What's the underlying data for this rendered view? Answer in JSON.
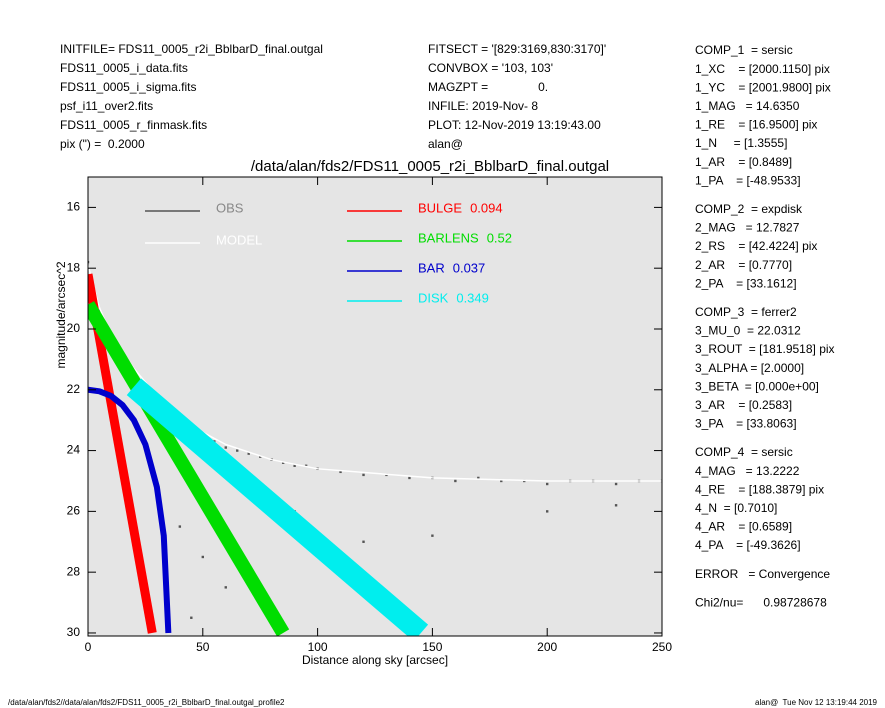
{
  "header": {
    "left": [
      "INITFILE= FDS11_0005_r2i_BblbarD_final.outgal",
      "FDS11_0005_i_data.fits",
      "FDS11_0005_i_sigma.fits",
      "psf_i11_over2.fits",
      "FDS11_0005_r_finmask.fits",
      "pix (\") =  0.2000"
    ],
    "middle": [
      "FITSECT = '[829:3169,830:3170]'",
      "CONVBOX = '103, 103'",
      "MAGZPT =               0.",
      "INFILE: 2019-Nov- 8",
      "PLOT: 12-Nov-2019 13:19:43.00",
      "alan@"
    ]
  },
  "parameters": [
    [
      "COMP_1  = sersic",
      "1_XC    = [2000.1150] pix",
      "1_YC    = [2001.9800] pix",
      "1_MAG   = 14.6350",
      "1_RE    = [16.9500] pix",
      "1_N     = [1.3555]",
      "1_AR    = [0.8489]",
      "1_PA    = [-48.9533]"
    ],
    [
      "COMP_2  = expdisk",
      "2_MAG   = 12.7827",
      "2_RS    = [42.4224] pix",
      "2_AR    = [0.7770]",
      "2_PA    = [33.1612]"
    ],
    [
      "COMP_3  = ferrer2",
      "3_MU_0  = 22.0312",
      "3_ROUT  = [181.9518] pix",
      "3_ALPHA = [2.0000]",
      "3_BETA  = [0.000e+00]",
      "3_AR    = [0.2583]",
      "3_PA    = [33.8063]"
    ],
    [
      "COMP_4  = sersic",
      "4_MAG   = 13.2222",
      "4_RE    = [188.3879] pix",
      "4_N  = [0.7010]",
      "4_AR    = [0.6589]",
      "4_PA    = [-49.3626]"
    ],
    [
      "ERROR   = Convergence"
    ],
    [
      "Chi2/nu=      0.98728678"
    ]
  ],
  "footer": {
    "left": "/data/alan/fds2//data/alan/fds2/FDS11_0005_r2i_BblbarD_final.outgal_profile2",
    "right": "alan@  Tue Nov 12 13:19:44 2019"
  },
  "chart_data": {
    "type": "scatter",
    "title": "/data/alan/fds2/FDS11_0005_r2i_BblbarD_final.outgal",
    "x_label": "Distance along sky [arcsec]",
    "y_label": "magnitude/arcsec^2",
    "xlim": [
      0,
      250
    ],
    "ylim": [
      15,
      30.1
    ],
    "y_inverted": true,
    "xticks": [
      0,
      50,
      100,
      150,
      200,
      250
    ],
    "yticks": [
      16,
      18,
      20,
      22,
      24,
      26,
      28,
      30
    ],
    "background": "#e5e5e5",
    "series": [
      {
        "name": "OBS",
        "color": "#555555",
        "kind": "points",
        "x": [
          0,
          1,
          2,
          3,
          5,
          7,
          10,
          12,
          15,
          18,
          20,
          25,
          30,
          35,
          40,
          45,
          50,
          55,
          60,
          65,
          70,
          75,
          80,
          85,
          90,
          95,
          100,
          110,
          120,
          130,
          140,
          150,
          160,
          170,
          180,
          190,
          200,
          210,
          220,
          230,
          240,
          250,
          30,
          40,
          50,
          60,
          45,
          70,
          90,
          120,
          150,
          200,
          230
        ],
        "values": [
          17.8,
          18.3,
          18.6,
          18.9,
          19.4,
          19.8,
          20.3,
          20.6,
          21.0,
          21.3,
          21.6,
          22.0,
          22.4,
          22.7,
          23.0,
          23.2,
          23.5,
          23.7,
          23.9,
          24.0,
          24.1,
          24.2,
          24.3,
          24.4,
          24.5,
          24.5,
          24.6,
          24.7,
          24.8,
          24.8,
          24.9,
          24.9,
          25.0,
          24.9,
          25.0,
          25.0,
          25.1,
          25.0,
          25.0,
          25.1,
          25.0,
          25.0,
          25.5,
          26.5,
          27.5,
          28.5,
          29.5,
          28.0,
          26.0,
          27.0,
          26.8,
          26.0,
          25.8
        ]
      },
      {
        "name": "MODEL",
        "color": "#ffffff",
        "kind": "line",
        "width": 1.5,
        "x": [
          0,
          5,
          10,
          20,
          30,
          40,
          50,
          60,
          80,
          100,
          150,
          200,
          250
        ],
        "values": [
          17.9,
          19.3,
          20.2,
          21.3,
          22.2,
          22.9,
          23.4,
          23.8,
          24.3,
          24.6,
          24.9,
          25.0,
          25.0
        ]
      },
      {
        "name": "BULGE",
        "fraction": 0.094,
        "color": "#ff0000",
        "kind": "line",
        "width": 9,
        "x": [
          0,
          28
        ],
        "values": [
          18.2,
          30
        ]
      },
      {
        "name": "BARLENS",
        "fraction": 0.52,
        "color": "#00dd00",
        "kind": "line",
        "width": 14,
        "x": [
          0,
          85
        ],
        "values": [
          19.2,
          30
        ]
      },
      {
        "name": "BAR",
        "fraction": 0.037,
        "color": "#0000cc",
        "kind": "line",
        "width": 6,
        "x": [
          0,
          5,
          10,
          15,
          20,
          25,
          30,
          33,
          35
        ],
        "values": [
          22,
          22.05,
          22.2,
          22.5,
          23.0,
          23.8,
          25.2,
          26.8,
          30
        ]
      },
      {
        "name": "DISK",
        "fraction": 0.349,
        "color": "#00eeee",
        "kind": "line",
        "width": 22,
        "x": [
          20,
          145
        ],
        "values": [
          21.9,
          30
        ]
      }
    ]
  }
}
